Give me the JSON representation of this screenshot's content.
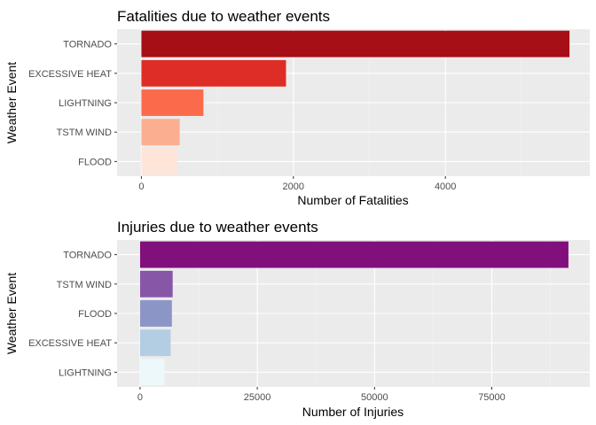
{
  "chart_data": [
    {
      "type": "bar",
      "orientation": "horizontal",
      "title": "Fatalities due to weather events",
      "xlabel": "Number of Fatalities",
      "ylabel": "Weather Event",
      "categories": [
        "TORNADO",
        "EXCESSIVE HEAT",
        "LIGHTNING",
        "TSTM WIND",
        "FLOOD"
      ],
      "values": [
        5633,
        1903,
        816,
        504,
        470
      ],
      "colors": [
        "#a50f15",
        "#de2d26",
        "#fb6a4a",
        "#fcae91",
        "#fee5d9"
      ],
      "xticks": [
        0,
        2000,
        4000
      ],
      "xlim": [
        -320,
        5900
      ],
      "grid": true,
      "legend": "none"
    },
    {
      "type": "bar",
      "orientation": "horizontal",
      "title": "Injuries due to weather events",
      "xlabel": "Number of Injuries",
      "ylabel": "Weather Event",
      "categories": [
        "TORNADO",
        "TSTM WIND",
        "FLOOD",
        "EXCESSIVE HEAT",
        "LIGHTNING"
      ],
      "values": [
        91346,
        6957,
        6789,
        6525,
        5230
      ],
      "colors": [
        "#810f7c",
        "#8856a7",
        "#8c96c6",
        "#b3cde3",
        "#edf8fb"
      ],
      "xticks": [
        0,
        25000,
        50000,
        75000
      ],
      "xlim": [
        -4900,
        95900
      ],
      "grid": true,
      "legend": "none"
    }
  ]
}
